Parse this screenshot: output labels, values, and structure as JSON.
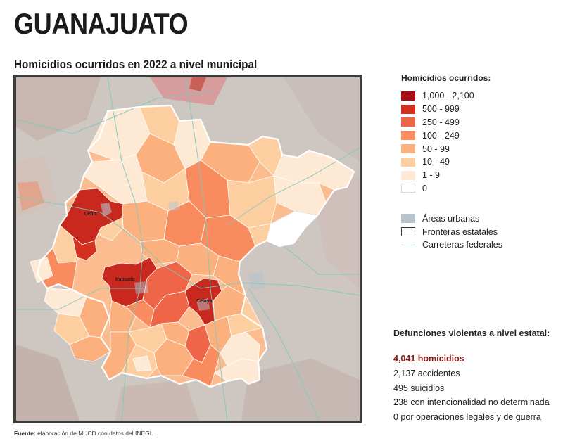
{
  "header": {
    "state_title": "GUANAJUATO",
    "subtitle": "Homicidios ocurridos en 2022 a nivel municipal"
  },
  "legend": {
    "title": "Homicidios ocurridos:",
    "classes": [
      {
        "label": "1,000 - 2,100",
        "color": "#a50f15"
      },
      {
        "label": "500 - 999",
        "color": "#d4301f"
      },
      {
        "label": "250 - 499",
        "color": "#ef6548"
      },
      {
        "label": "100 - 249",
        "color": "#f88c5e"
      },
      {
        "label": "50 - 99",
        "color": "#fbb07e"
      },
      {
        "label": "10 - 49",
        "color": "#fdcfa0"
      },
      {
        "label": "1 - 9",
        "color": "#fde9d4"
      },
      {
        "label": "0",
        "color": "#ffffff"
      }
    ],
    "urban_label": "Áreas urbanas",
    "borders_label": "Fronteras estatales",
    "roads_label": "Carreteras federales",
    "urban_color": "#b6c3cd",
    "road_color": "#7fc8c0"
  },
  "map": {
    "cities": {
      "leon": "León",
      "irapuato": "Irapuato",
      "celaya": "Celaya"
    }
  },
  "stats": {
    "title": "Defunciones violentas a nivel estatal:",
    "homicidios": "4,041 homicidios",
    "accidentes": "2,137 accidentes",
    "suicidios": "495 suicidios",
    "indeterminada": "238 con intencionalidad no determinada",
    "guerra": "0 por operaciones legales y de guerra"
  },
  "source": {
    "label": "Fuente:",
    "text": "elaboración de MUCD con datos del INEGI."
  }
}
